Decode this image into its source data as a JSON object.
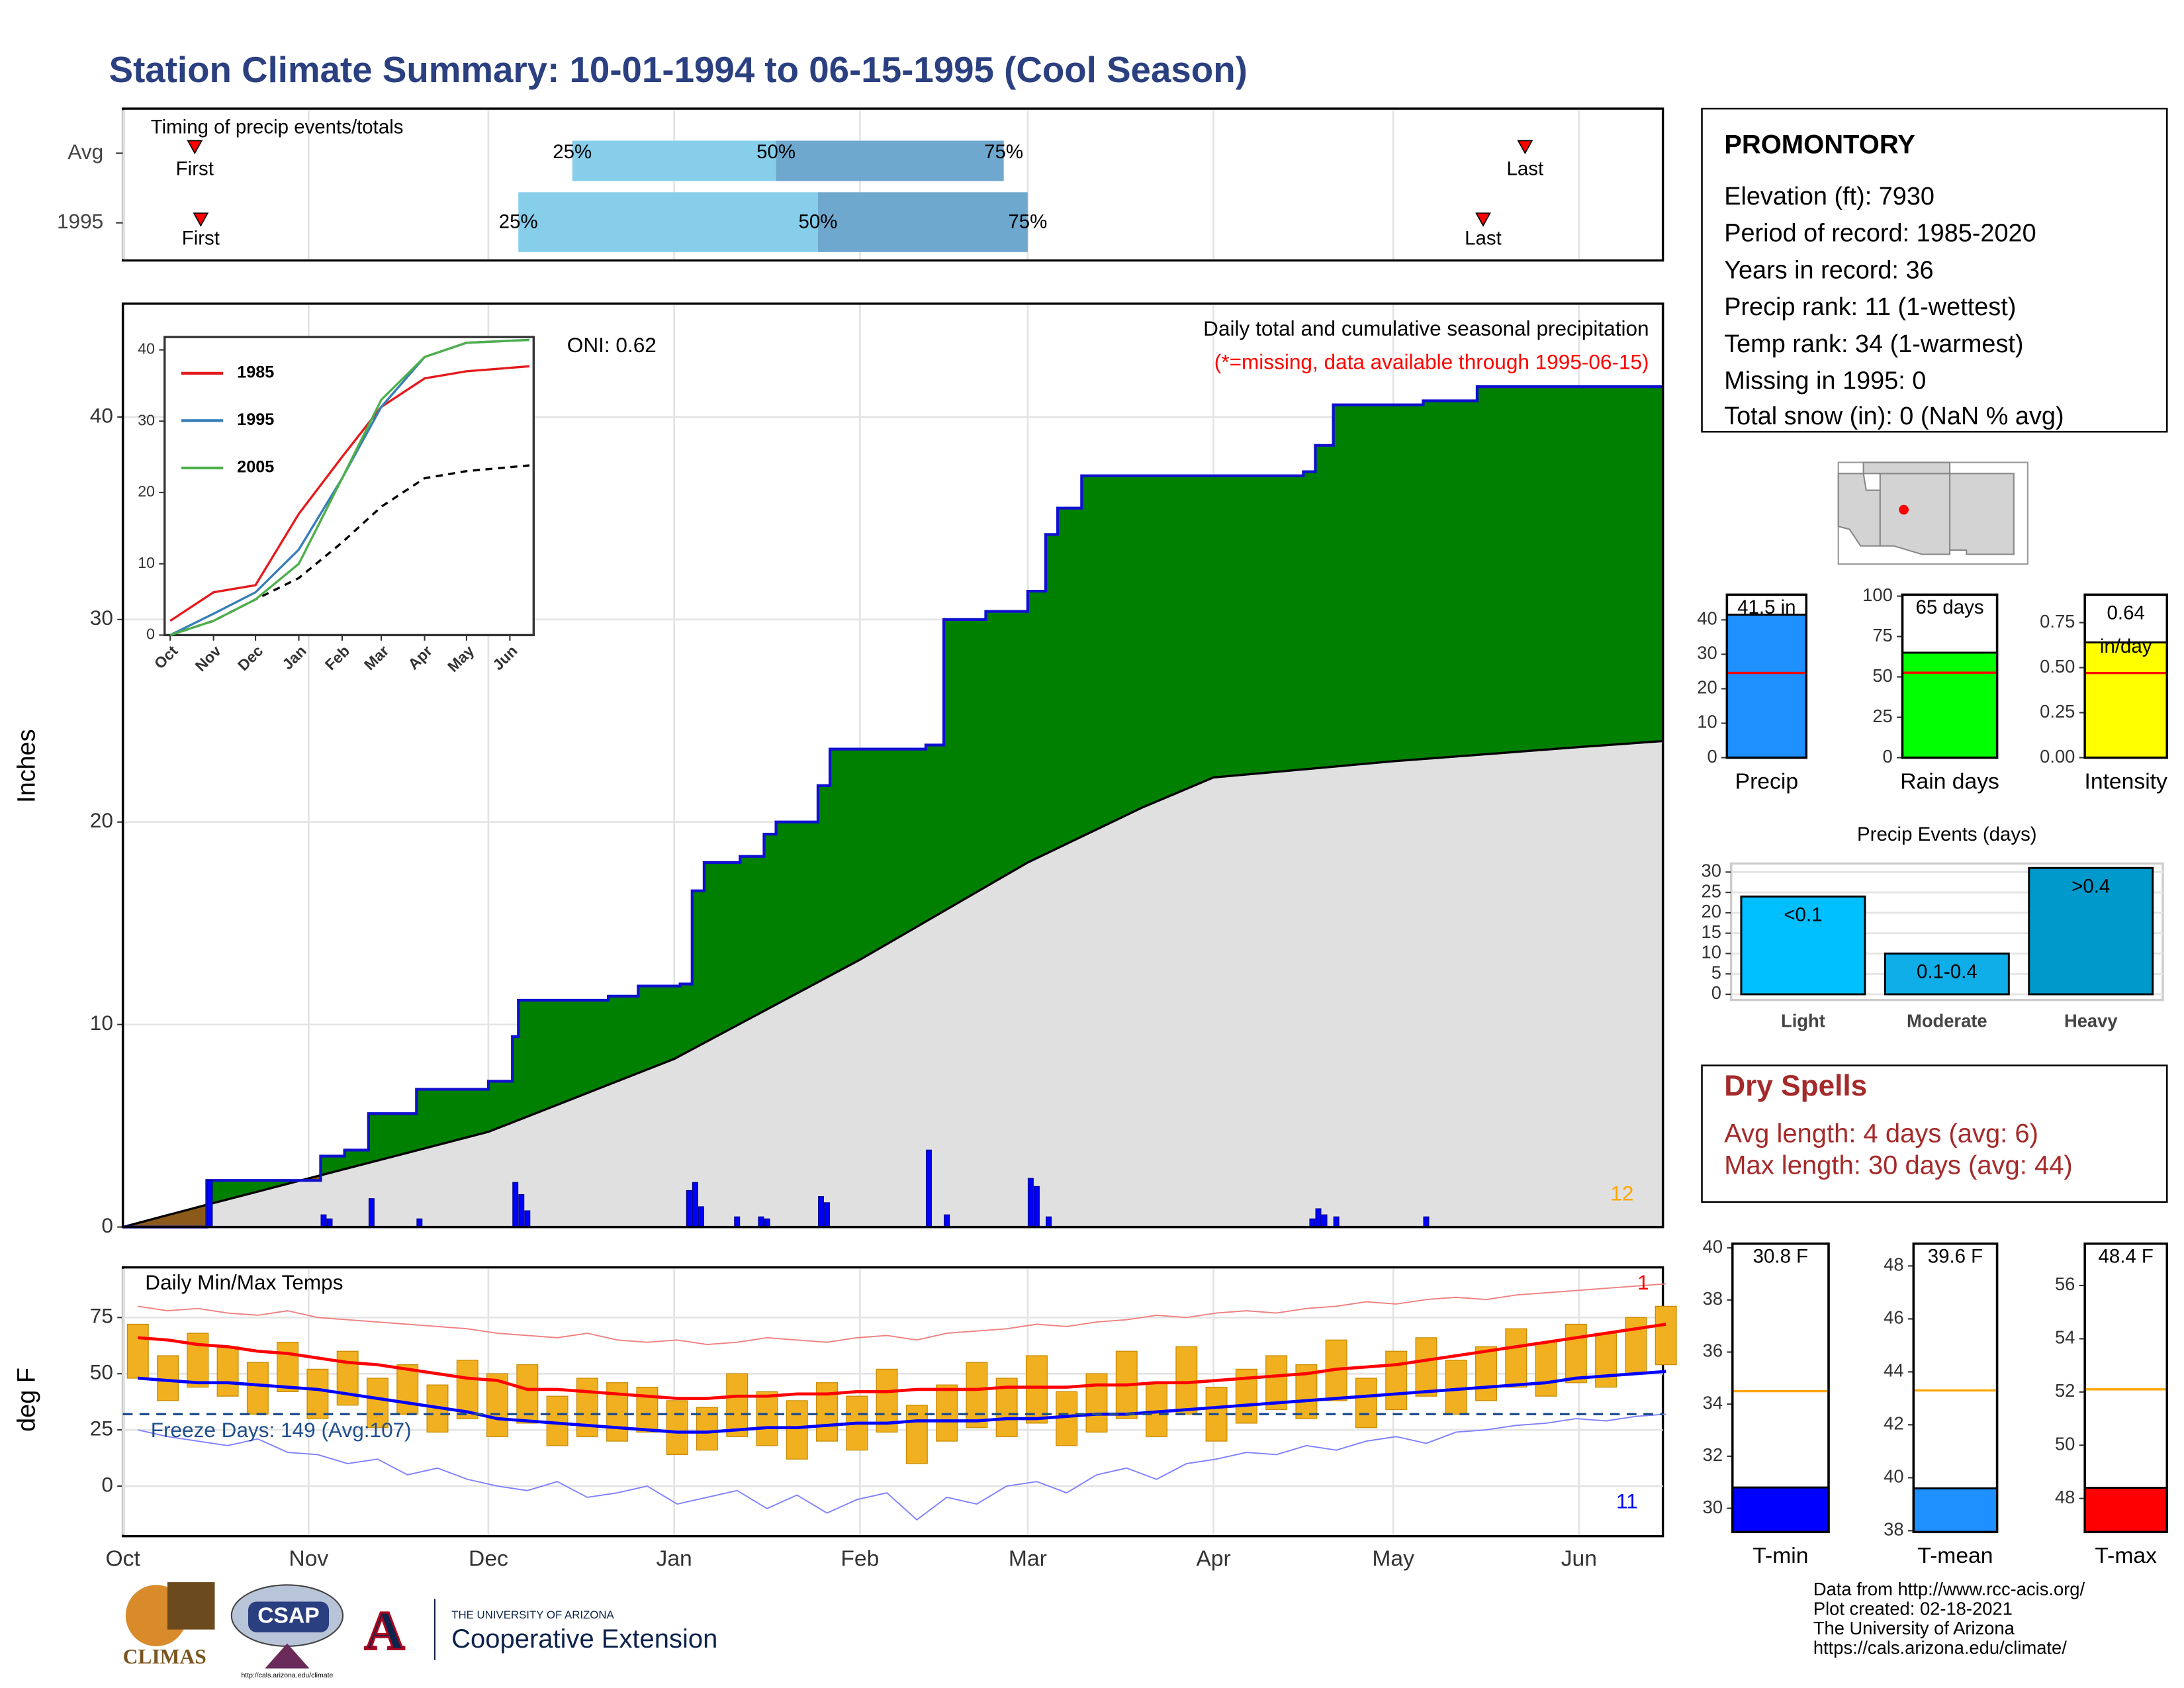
{
  "title": "Station Climate Summary: 10-01-1994 to 06-15-1995 (Cool Season)",
  "station": {
    "name": "PROMONTORY",
    "lines": [
      "Elevation (ft): 7930",
      "Period of record: 1985-2020",
      "Years in record: 36",
      "Precip rank: 11 (1-wettest)",
      "Temp rank: 34 (1-warmest)",
      "Missing in 1995: 0",
      "Total snow (in): 0 (NaN % avg)"
    ]
  },
  "dry_spells": {
    "title": "Dry Spells",
    "lines": [
      "Avg length: 4 days (avg: 6)",
      "Max length: 30 days (avg: 44)"
    ]
  },
  "footer": {
    "credits": [
      "Data from http://www.rcc-acis.org/",
      "Plot created: 02-18-2021",
      "The University of Arizona",
      "https://cals.arizona.edu/climate/"
    ],
    "logos": {
      "climas": "CLIMAS",
      "csap": "CSAP",
      "csap_url": "http://cals.arizona.edu/climate",
      "ua": "THE UNIVERSITY OF ARIZONA",
      "coop": "Cooperative Extension"
    }
  },
  "chart_data": [
    {
      "type": "timeline",
      "title": "Timing of precip events/totals",
      "labels": {
        "first": "First",
        "last": "Last",
        "q25": "25%",
        "q50": "50%",
        "q75": "75%"
      },
      "color_low": "#87ceeb",
      "color_high": "#6fa8cf",
      "marker_color": "#ff0000",
      "rows": [
        {
          "name": "Avg",
          "first": 12,
          "q25": 75,
          "q50": 109,
          "q75": 147,
          "last": 234
        },
        {
          "name": "1995",
          "first": 13,
          "q25": 66,
          "q50": 116,
          "q75": 151,
          "last": 227
        }
      ]
    },
    {
      "type": "precip",
      "title": "Daily total and cumulative seasonal precipitation",
      "note": "(*=missing, data available through 1995-06-15)",
      "oni": "ONI: 0.62",
      "ylabel": "Inches",
      "corner_label": "12",
      "ylim": [
        0,
        45.6
      ],
      "yticks": [
        0,
        10,
        20,
        30,
        40
      ],
      "grid": true,
      "cumulative": {
        "color": "#008000",
        "line_color": "#1010d0",
        "below_color": "#8b5a1a",
        "x": [
          0,
          14,
          33,
          37,
          41,
          49,
          61,
          65,
          66,
          81,
          86,
          93,
          95,
          97,
          103,
          107,
          109,
          116,
          118,
          134,
          137,
          144,
          151,
          154,
          156,
          160,
          197,
          199,
          202,
          217,
          226,
          257
        ],
        "values": [
          0,
          2.3,
          3.5,
          3.8,
          5.6,
          6.8,
          7.2,
          9.4,
          11.2,
          11.4,
          11.9,
          12.0,
          16.6,
          18.0,
          18.3,
          19.4,
          20.0,
          21.8,
          23.6,
          23.8,
          30.0,
          30.4,
          31.4,
          34.2,
          35.5,
          37.1,
          37.3,
          38.6,
          40.6,
          40.8,
          41.5,
          41.5
        ]
      },
      "normal": {
        "color": "#e0e0e0",
        "line_color": "#000000",
        "x": [
          0,
          14,
          31,
          61,
          92,
          123,
          151,
          170,
          182,
          212,
          243,
          257
        ],
        "values": [
          0,
          1.1,
          2.4,
          4.7,
          8.3,
          13.2,
          18.0,
          20.7,
          22.2,
          23.0,
          23.7,
          24.0
        ]
      },
      "daily": {
        "color": "#0000ff",
        "x": [
          14,
          33,
          34,
          41,
          49,
          65,
          66,
          67,
          94,
          95,
          96,
          102,
          106,
          107,
          116,
          117,
          134,
          137,
          151,
          152,
          154,
          198,
          199,
          200,
          202,
          217
        ],
        "values": [
          2.3,
          0.6,
          0.4,
          1.4,
          0.4,
          2.2,
          1.6,
          0.8,
          1.8,
          2.2,
          1.0,
          0.5,
          0.5,
          0.4,
          1.5,
          1.2,
          3.8,
          0.6,
          2.4,
          2.0,
          0.5,
          0.4,
          0.9,
          0.6,
          0.5,
          0.5
        ]
      }
    },
    {
      "type": "line",
      "xlim": [
        -4,
        260
      ],
      "ylim": [
        0,
        41.8
      ],
      "yticks": [
        0,
        10,
        20,
        30,
        40
      ],
      "xticks": [
        {
          "value": 0,
          "label": "Oct"
        },
        {
          "value": 31,
          "label": "Nov"
        },
        {
          "value": 61,
          "label": "Dec"
        },
        {
          "value": 92,
          "label": "Jan"
        },
        {
          "value": 123,
          "label": "Feb"
        },
        {
          "value": 151,
          "label": "Mar"
        },
        {
          "value": 182,
          "label": "Apr"
        },
        {
          "value": 212,
          "label": "May"
        },
        {
          "value": 243,
          "label": "Jun"
        }
      ],
      "x": [
        0,
        31,
        61,
        92,
        123,
        151,
        182,
        212,
        257
      ],
      "series": [
        {
          "name": "1985",
          "color": "#e41a1c",
          "values": [
            2,
            6,
            7,
            17,
            25,
            32,
            36,
            37,
            37.7
          ]
        },
        {
          "name": "1995",
          "color": "#377eb8",
          "values": [
            0,
            3,
            6,
            12,
            22,
            32,
            39,
            41,
            41.4
          ]
        },
        {
          "name": "2005",
          "color": "#4daf4a",
          "values": [
            0,
            2,
            5,
            10,
            22,
            33,
            39,
            41,
            41.4
          ]
        }
      ],
      "avg_values": [
        0,
        2,
        5,
        8,
        13,
        18,
        22,
        23,
        23.8
      ],
      "avg_color": "#000000"
    },
    {
      "type": "temps",
      "title": "Daily Min/Max Temps",
      "freeze_label": "Freeze Days: 149 (Avg:107)",
      "ylabel": "deg F",
      "max_corner": "1",
      "min_corner": "11",
      "freeze_line": 32,
      "xlim": [
        0,
        257
      ],
      "xticks": [
        {
          "value": 0,
          "label": "Oct"
        },
        {
          "value": 31,
          "label": "Nov"
        },
        {
          "value": 61,
          "label": "Dec"
        },
        {
          "value": 92,
          "label": "Jan"
        },
        {
          "value": 123,
          "label": "Feb"
        },
        {
          "value": 151,
          "label": "Mar"
        },
        {
          "value": 182,
          "label": "Apr"
        },
        {
          "value": 212,
          "label": "May"
        },
        {
          "value": 243,
          "label": "Jun"
        }
      ],
      "ylim": [
        -22.3,
        97.3
      ],
      "yticks": [
        0,
        25,
        50,
        75
      ],
      "grid": true,
      "x": [
        0,
        5,
        10,
        15,
        20,
        25,
        30,
        35,
        40,
        45,
        50,
        55,
        60,
        65,
        70,
        75,
        80,
        85,
        90,
        95,
        100,
        105,
        110,
        115,
        120,
        125,
        130,
        135,
        140,
        145,
        150,
        155,
        160,
        165,
        170,
        175,
        180,
        185,
        190,
        195,
        200,
        205,
        210,
        215,
        220,
        225,
        230,
        235,
        240,
        245,
        250,
        255
      ],
      "tmax": {
        "color": "#f0b020",
        "values": [
          72,
          58,
          68,
          62,
          55,
          64,
          52,
          60,
          48,
          54,
          45,
          56,
          50,
          54,
          40,
          48,
          46,
          44,
          38,
          35,
          50,
          42,
          38,
          46,
          40,
          52,
          36,
          45,
          55,
          48,
          58,
          42,
          50,
          60,
          46,
          62,
          44,
          52,
          58,
          54,
          65,
          48,
          60,
          66,
          56,
          62,
          70,
          64,
          72,
          68,
          75,
          80
        ]
      },
      "tmin": {
        "color": "#f0b020",
        "values": [
          48,
          38,
          44,
          40,
          32,
          42,
          30,
          36,
          26,
          32,
          24,
          30,
          22,
          28,
          18,
          22,
          20,
          24,
          14,
          16,
          22,
          18,
          12,
          20,
          16,
          24,
          10,
          20,
          26,
          22,
          28,
          18,
          24,
          30,
          22,
          32,
          20,
          28,
          34,
          30,
          38,
          26,
          34,
          40,
          32,
          38,
          44,
          40,
          46,
          44,
          50,
          54
        ]
      },
      "normal_max": {
        "color": "#ff0000",
        "values": [
          66,
          65,
          63,
          62,
          60,
          59,
          57,
          55,
          54,
          52,
          50,
          48,
          47,
          43,
          43,
          42,
          41,
          40,
          39,
          39,
          40,
          40,
          41,
          41,
          42,
          42,
          43,
          43,
          43,
          44,
          44,
          44,
          45,
          45,
          46,
          46,
          47,
          48,
          49,
          50,
          52,
          53,
          54,
          56,
          58,
          60,
          62,
          64,
          66,
          68,
          70,
          72
        ]
      },
      "normal_min": {
        "color": "#0000ff",
        "values": [
          48,
          47,
          46,
          46,
          45,
          44,
          43,
          41,
          39,
          37,
          35,
          33,
          30,
          29,
          28,
          27,
          26,
          25,
          24,
          24,
          25,
          26,
          26,
          27,
          28,
          28,
          29,
          29,
          29,
          30,
          30,
          31,
          32,
          32,
          33,
          34,
          35,
          36,
          37,
          38,
          39,
          40,
          41,
          42,
          43,
          44,
          45,
          46,
          48,
          49,
          50,
          51
        ]
      },
      "record_max": {
        "color": "#f08080",
        "values": [
          80,
          78,
          79,
          77,
          76,
          78,
          75,
          74,
          73,
          72,
          71,
          70,
          68,
          67,
          66,
          68,
          65,
          64,
          65,
          63,
          64,
          66,
          65,
          64,
          66,
          67,
          65,
          68,
          69,
          70,
          72,
          71,
          73,
          74,
          76,
          75,
          77,
          78,
          77,
          79,
          80,
          82,
          81,
          83,
          84,
          83,
          85,
          86,
          87,
          88,
          89,
          90
        ]
      },
      "record_min": {
        "color": "#8080ff",
        "values": [
          25,
          22,
          20,
          18,
          21,
          15,
          14,
          10,
          12,
          5,
          8,
          3,
          0,
          -2,
          2,
          -5,
          -3,
          0,
          -8,
          -5,
          -2,
          -10,
          -4,
          -12,
          -6,
          -3,
          -15,
          -5,
          -8,
          0,
          2,
          -3,
          5,
          8,
          3,
          10,
          12,
          15,
          14,
          18,
          16,
          20,
          22,
          19,
          24,
          25,
          27,
          28,
          30,
          29,
          31,
          32
        ]
      }
    },
    {
      "type": "bar",
      "categories": [
        "Precip"
      ],
      "values": [
        41.5
      ],
      "value_labels": [
        "41.5 in"
      ],
      "color": "#1e90ff",
      "avg": 24.6,
      "avg_color": "#ff0000",
      "ylim": [
        0,
        47.3
      ],
      "yticks": [
        0,
        10,
        20,
        30,
        40
      ]
    },
    {
      "type": "bar",
      "categories": [
        "Rain days"
      ],
      "values": [
        65
      ],
      "value_labels": [
        "65 days"
      ],
      "color": "#00ff00",
      "avg": 52.6,
      "avg_color": "#ff0000",
      "ylim": [
        0,
        100.9
      ],
      "yticks": [
        0,
        25,
        50,
        75,
        100
      ]
    },
    {
      "type": "bar",
      "categories": [
        "Intensity"
      ],
      "values": [
        0.64
      ],
      "unit_label": "in/day",
      "color": "#ffff00",
      "avg": 0.47,
      "avg_color": "#ff0000",
      "ylim": [
        0,
        0.905
      ],
      "yticks": [
        {
          "value": 0,
          "label": "0.00"
        },
        0.25,
        {
          "value": 0.5,
          "label": "0.50"
        },
        0.75
      ]
    },
    {
      "type": "bar",
      "title": "Precip Events (days)",
      "categories": [
        "Light",
        "Moderate",
        "Heavy"
      ],
      "values": [
        24,
        10,
        31
      ],
      "value_labels": [
        "<0.1",
        "0.1-0.4",
        ">0.4"
      ],
      "colors": [
        "#00bfff",
        "#10aee8",
        "#0099cc"
      ],
      "ylim": [
        -1.4,
        32.1
      ],
      "yticks": [
        0,
        5,
        10,
        15,
        20,
        25,
        30
      ],
      "grid": true
    },
    {
      "type": "bar",
      "categories": [
        "T-min"
      ],
      "values": [
        30.8
      ],
      "value_labels": [
        "30.8 F"
      ],
      "color": "#0000ff",
      "avg": 34.5,
      "avg_color": "#ffa500",
      "ylim": [
        29.09,
        40.16
      ],
      "yticks": [
        30,
        32,
        34,
        36,
        38,
        40
      ]
    },
    {
      "type": "bar",
      "categories": [
        "T-mean"
      ],
      "values": [
        39.6
      ],
      "value_labels": [
        "39.6 F"
      ],
      "color": "#1e90ff",
      "avg": 43.3,
      "avg_color": "#ffa500",
      "ylim": [
        37.95,
        48.84
      ],
      "yticks": [
        38,
        40,
        42,
        44,
        46,
        48
      ]
    },
    {
      "type": "bar",
      "categories": [
        "T-max"
      ],
      "values": [
        48.4
      ],
      "value_labels": [
        "48.4 F"
      ],
      "color": "#ff0000",
      "avg": 52.1,
      "avg_color": "#ffa500",
      "ylim": [
        46.74,
        57.57
      ],
      "yticks": [
        48,
        50,
        52,
        54,
        56
      ]
    }
  ]
}
